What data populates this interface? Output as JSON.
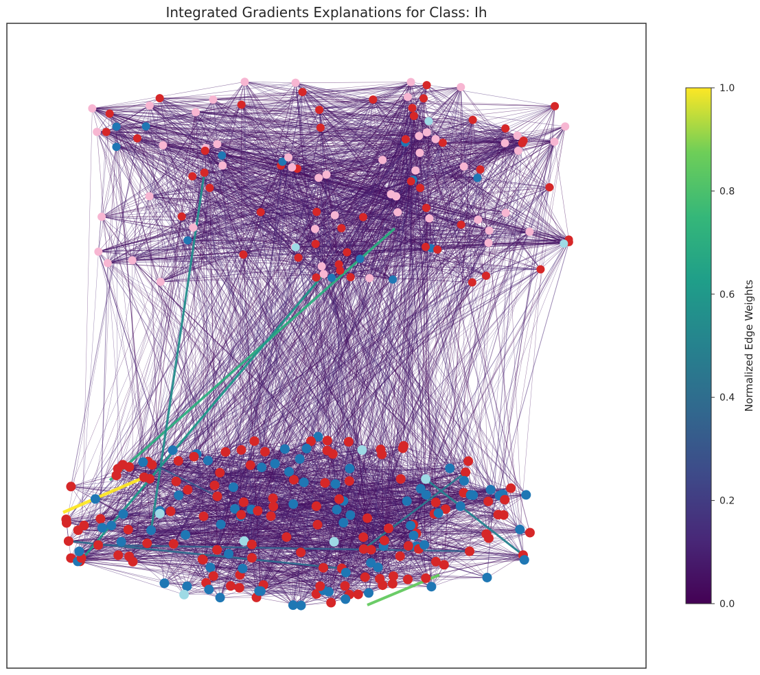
{
  "chart_data": {
    "type": "network",
    "title": "Integrated Gradients Explanations for Class: Ih",
    "colorbar": {
      "label": "Normalized Edge Weights",
      "colormap": "viridis",
      "range": [
        0.0,
        1.0
      ],
      "ticks": [
        "0.0",
        "0.2",
        "0.4",
        "0.6",
        "0.8",
        "1.0"
      ]
    },
    "node_colors": [
      "#d62728",
      "#1f77b4",
      "#f7b6d2",
      "#9edae5"
    ],
    "clusters": [
      {
        "id": "upper",
        "approx_nodes": 120
      },
      {
        "id": "lower",
        "approx_nodes": 200
      }
    ],
    "highlighted_edge_weights": [
      1.0,
      0.85,
      0.7,
      0.6,
      0.55,
      0.5,
      0.45,
      0.4,
      0.35,
      0.3
    ]
  }
}
